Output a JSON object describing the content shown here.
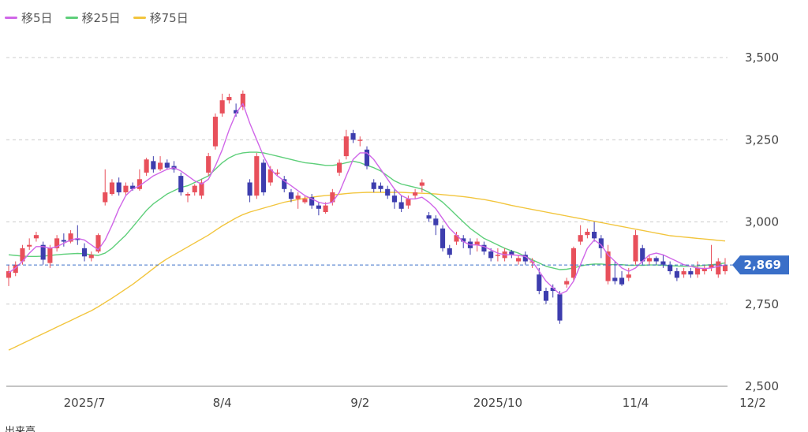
{
  "legend": {
    "items": [
      {
        "label": "移5日",
        "color": "#d066e8"
      },
      {
        "label": "移25日",
        "color": "#5ecf7a"
      },
      {
        "label": "移75日",
        "color": "#f2c53d"
      }
    ]
  },
  "current_price_label": "2,869",
  "colors": {
    "up": "#e8505b",
    "down": "#3d3dae",
    "price_line": "#3a6fc8",
    "price_badge": "#3a6fc8",
    "grid": "#cccccc"
  },
  "bottom_text": "出来高",
  "chart_data": {
    "type": "candlestick",
    "y_ticks": [
      "3,500",
      "3,250",
      "3,000",
      "2,750",
      "2,500"
    ],
    "y_tick_values": [
      3500,
      3250,
      3000,
      2750,
      2500
    ],
    "ylim": [
      2500,
      3520
    ],
    "x_ticks": [
      {
        "label": "2025/7",
        "index": 11
      },
      {
        "label": "8/4",
        "index": 31
      },
      {
        "label": "9/2",
        "index": 51
      },
      {
        "label": "2025/10",
        "index": 71
      },
      {
        "label": "11/4",
        "index": 91
      },
      {
        "label": "12/2",
        "index": 108
      }
    ],
    "current_price": 2869,
    "candles": [
      [
        2830,
        2850,
        2805,
        2870
      ],
      [
        2845,
        2870,
        2835,
        2880
      ],
      [
        2880,
        2920,
        2870,
        2930
      ],
      [
        2925,
        2930,
        2915,
        2950
      ],
      [
        2950,
        2960,
        2940,
        2970
      ],
      [
        2930,
        2885,
        2870,
        2940
      ],
      [
        2875,
        2920,
        2860,
        2930
      ],
      [
        2920,
        2950,
        2910,
        2960
      ],
      [
        2945,
        2940,
        2925,
        2965
      ],
      [
        2940,
        2965,
        2935,
        2975
      ],
      [
        2950,
        2945,
        2930,
        2990
      ],
      [
        2920,
        2895,
        2880,
        2935
      ],
      [
        2890,
        2900,
        2880,
        2910
      ],
      [
        2910,
        2960,
        2905,
        2965
      ],
      [
        3060,
        3090,
        3050,
        3160
      ],
      [
        3085,
        3120,
        3080,
        3130
      ],
      [
        3120,
        3090,
        3080,
        3135
      ],
      [
        3090,
        3110,
        3080,
        3120
      ],
      [
        3110,
        3100,
        3095,
        3120
      ],
      [
        3100,
        3130,
        3095,
        3160
      ],
      [
        3150,
        3190,
        3140,
        3195
      ],
      [
        3185,
        3160,
        3150,
        3200
      ],
      [
        3160,
        3180,
        3155,
        3200
      ],
      [
        3180,
        3165,
        3160,
        3190
      ],
      [
        3170,
        3160,
        3150,
        3185
      ],
      [
        3140,
        3090,
        3080,
        3150
      ],
      [
        3080,
        3085,
        3060,
        3090
      ],
      [
        3090,
        3110,
        3080,
        3115
      ],
      [
        3080,
        3120,
        3070,
        3130
      ],
      [
        3150,
        3200,
        3140,
        3210
      ],
      [
        3230,
        3320,
        3220,
        3330
      ],
      [
        3330,
        3370,
        3320,
        3390
      ],
      [
        3370,
        3380,
        3360,
        3390
      ],
      [
        3340,
        3330,
        3320,
        3360
      ],
      [
        3350,
        3390,
        3340,
        3400
      ],
      [
        3120,
        3080,
        3060,
        3130
      ],
      [
        3080,
        3200,
        3070,
        3210
      ],
      [
        3180,
        3090,
        3080,
        3190
      ],
      [
        3120,
        3160,
        3110,
        3170
      ],
      [
        3150,
        3150,
        3140,
        3160
      ],
      [
        3130,
        3100,
        3090,
        3140
      ],
      [
        3090,
        3070,
        3060,
        3100
      ],
      [
        3070,
        3080,
        3040,
        3090
      ],
      [
        3060,
        3070,
        3055,
        3080
      ],
      [
        3075,
        3050,
        3040,
        3085
      ],
      [
        3050,
        3040,
        3020,
        3060
      ],
      [
        3030,
        3050,
        3025,
        3060
      ],
      [
        3060,
        3090,
        3050,
        3100
      ],
      [
        3150,
        3180,
        3140,
        3190
      ],
      [
        3200,
        3260,
        3190,
        3280
      ],
      [
        3270,
        3250,
        3240,
        3280
      ],
      [
        3250,
        3250,
        3230,
        3260
      ],
      [
        3220,
        3170,
        3160,
        3230
      ],
      [
        3120,
        3100,
        3090,
        3130
      ],
      [
        3110,
        3100,
        3090,
        3120
      ],
      [
        3100,
        3080,
        3070,
        3110
      ],
      [
        3080,
        3060,
        3040,
        3100
      ],
      [
        3060,
        3040,
        3030,
        3080
      ],
      [
        3050,
        3070,
        3040,
        3080
      ],
      [
        3080,
        3090,
        3070,
        3100
      ],
      [
        3110,
        3120,
        3090,
        3130
      ],
      [
        3020,
        3010,
        3000,
        3030
      ],
      [
        3010,
        2990,
        2960,
        3020
      ],
      [
        2980,
        2920,
        2910,
        2990
      ],
      [
        2920,
        2900,
        2890,
        2930
      ],
      [
        2940,
        2960,
        2930,
        2970
      ],
      [
        2950,
        2940,
        2920,
        2960
      ],
      [
        2940,
        2920,
        2900,
        2950
      ],
      [
        2930,
        2940,
        2910,
        2950
      ],
      [
        2930,
        2910,
        2900,
        2940
      ],
      [
        2910,
        2890,
        2880,
        2920
      ],
      [
        2900,
        2900,
        2880,
        2920
      ],
      [
        2890,
        2910,
        2880,
        2920
      ],
      [
        2910,
        2900,
        2890,
        2915
      ],
      [
        2880,
        2890,
        2870,
        2900
      ],
      [
        2900,
        2880,
        2870,
        2910
      ],
      [
        2880,
        2880,
        2860,
        2890
      ],
      [
        2840,
        2790,
        2780,
        2860
      ],
      [
        2790,
        2760,
        2750,
        2800
      ],
      [
        2800,
        2790,
        2770,
        2810
      ],
      [
        2780,
        2700,
        2690,
        2790
      ],
      [
        2810,
        2820,
        2800,
        2830
      ],
      [
        2830,
        2920,
        2820,
        2925
      ],
      [
        2940,
        2960,
        2930,
        2990
      ],
      [
        2960,
        2970,
        2950,
        2980
      ],
      [
        2970,
        2950,
        2940,
        3000
      ],
      [
        2950,
        2920,
        2890,
        2960
      ],
      [
        2820,
        2910,
        2810,
        2930
      ],
      [
        2830,
        2820,
        2810,
        2880
      ],
      [
        2830,
        2810,
        2805,
        2850
      ],
      [
        2830,
        2840,
        2820,
        2860
      ],
      [
        2880,
        2960,
        2870,
        2975
      ],
      [
        2920,
        2880,
        2870,
        2930
      ],
      [
        2880,
        2890,
        2870,
        2900
      ],
      [
        2890,
        2880,
        2870,
        2895
      ],
      [
        2880,
        2870,
        2860,
        2900
      ],
      [
        2870,
        2850,
        2840,
        2880
      ],
      [
        2850,
        2830,
        2820,
        2860
      ],
      [
        2840,
        2850,
        2830,
        2860
      ],
      [
        2850,
        2840,
        2830,
        2860
      ],
      [
        2840,
        2860,
        2830,
        2880
      ],
      [
        2850,
        2860,
        2840,
        2870
      ],
      [
        2860,
        2870,
        2850,
        2930
      ],
      [
        2840,
        2880,
        2830,
        2890
      ],
      [
        2850,
        2869,
        2840,
        2890
      ]
    ],
    "ma5": [
      2845,
      2860,
      2880,
      2905,
      2925,
      2925,
      2920,
      2925,
      2935,
      2945,
      2950,
      2945,
      2930,
      2915,
      2945,
      2990,
      3040,
      3080,
      3100,
      3110,
      3125,
      3140,
      3150,
      3160,
      3165,
      3155,
      3140,
      3125,
      3115,
      3130,
      3170,
      3220,
      3280,
      3330,
      3360,
      3300,
      3250,
      3200,
      3160,
      3140,
      3125,
      3110,
      3095,
      3080,
      3070,
      3060,
      3055,
      3060,
      3090,
      3140,
      3190,
      3210,
      3210,
      3190,
      3160,
      3130,
      3100,
      3080,
      3070,
      3070,
      3075,
      3060,
      3040,
      3010,
      2980,
      2960,
      2940,
      2930,
      2930,
      2925,
      2915,
      2905,
      2900,
      2900,
      2898,
      2895,
      2880,
      2850,
      2820,
      2800,
      2780,
      2790,
      2820,
      2870,
      2920,
      2945,
      2930,
      2900,
      2880,
      2860,
      2850,
      2860,
      2880,
      2900,
      2905,
      2900,
      2890,
      2880,
      2870,
      2865,
      2860,
      2858,
      2860,
      2865,
      2869
    ],
    "ma25": [
      2900,
      2898,
      2896,
      2895,
      2895,
      2896,
      2898,
      2900,
      2902,
      2903,
      2904,
      2903,
      2900,
      2898,
      2905,
      2920,
      2940,
      2960,
      2985,
      3010,
      3035,
      3055,
      3070,
      3085,
      3095,
      3105,
      3110,
      3120,
      3130,
      3140,
      3160,
      3180,
      3195,
      3205,
      3210,
      3212,
      3212,
      3210,
      3205,
      3200,
      3195,
      3190,
      3185,
      3180,
      3178,
      3175,
      3172,
      3172,
      3175,
      3180,
      3185,
      3180,
      3172,
      3165,
      3155,
      3140,
      3125,
      3115,
      3110,
      3105,
      3100,
      3090,
      3075,
      3060,
      3040,
      3020,
      3000,
      2980,
      2965,
      2950,
      2940,
      2930,
      2920,
      2912,
      2905,
      2895,
      2885,
      2875,
      2865,
      2860,
      2855,
      2856,
      2860,
      2866,
      2870,
      2872,
      2872,
      2870,
      2870,
      2870,
      2868,
      2868,
      2868,
      2869,
      2869,
      2868,
      2867,
      2866,
      2865,
      2865,
      2866,
      2868,
      2870,
      2872,
      2875
    ],
    "ma75": [
      2610,
      2620,
      2630,
      2640,
      2650,
      2660,
      2670,
      2680,
      2690,
      2700,
      2710,
      2720,
      2730,
      2742,
      2755,
      2768,
      2782,
      2796,
      2810,
      2826,
      2842,
      2858,
      2874,
      2888,
      2900,
      2912,
      2924,
      2936,
      2948,
      2960,
      2974,
      2988,
      3000,
      3012,
      3022,
      3030,
      3036,
      3042,
      3048,
      3054,
      3060,
      3064,
      3068,
      3072,
      3075,
      3078,
      3080,
      3082,
      3084,
      3086,
      3088,
      3089,
      3090,
      3090,
      3090,
      3090,
      3090,
      3090,
      3089,
      3088,
      3087,
      3086,
      3085,
      3083,
      3081,
      3079,
      3077,
      3074,
      3071,
      3068,
      3064,
      3060,
      3055,
      3050,
      3046,
      3042,
      3038,
      3034,
      3030,
      3026,
      3022,
      3018,
      3014,
      3010,
      3006,
      3002,
      2998,
      2994,
      2990,
      2986,
      2982,
      2978,
      2974,
      2970,
      2966,
      2962,
      2958,
      2956,
      2954,
      2952,
      2950,
      2948,
      2946,
      2944,
      2942
    ]
  }
}
